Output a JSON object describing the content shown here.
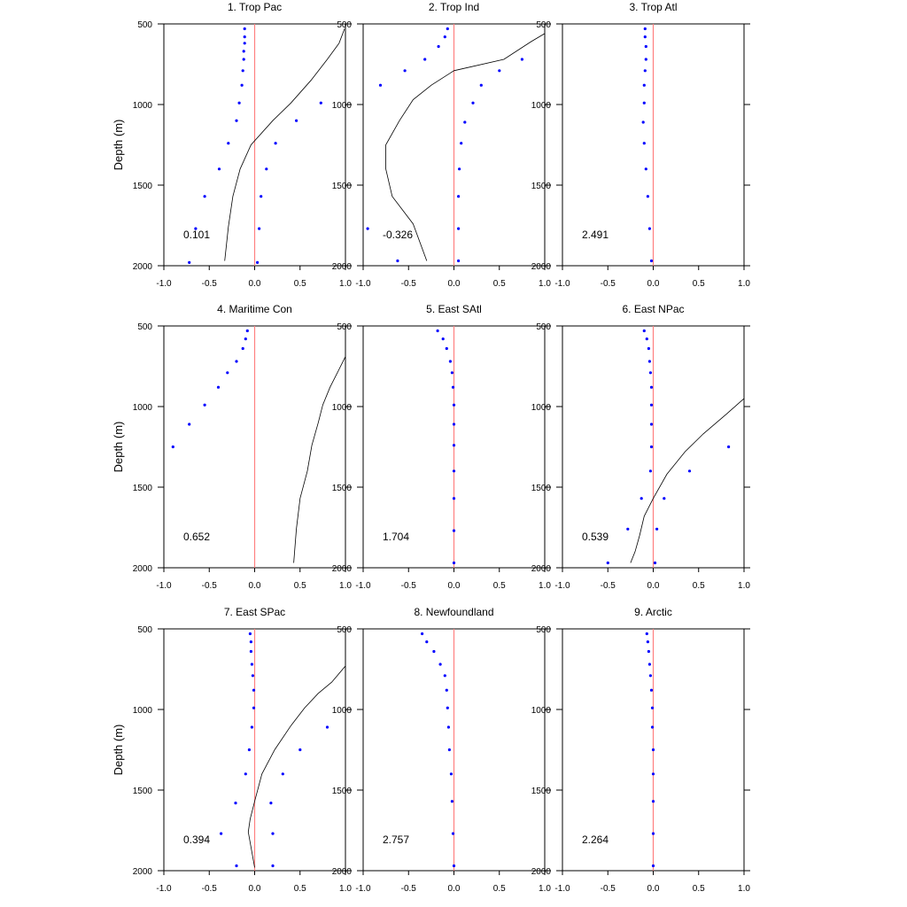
{
  "chart_data": {
    "type": "scatter",
    "ylabel": "Depth (m)",
    "x_ticks": [
      "-1.0",
      "-0.5",
      "0.0",
      "0.5",
      "1.0"
    ],
    "y_ticks": [
      "500",
      "1000",
      "1500",
      "2000"
    ],
    "xlim": [
      -1.0,
      1.0
    ],
    "ylim": [
      500,
      2000
    ],
    "y_inverted": true,
    "colors": {
      "dots": "#0000ff",
      "zero_line": "#ff8080",
      "curve": "#000000",
      "frame": "#000000"
    },
    "panels": [
      {
        "title": "1. Trop Pac",
        "stat": "0.101",
        "dots": [
          [
            -0.11,
            530
          ],
          [
            -0.11,
            580
          ],
          [
            -0.11,
            620
          ],
          [
            -0.12,
            670
          ],
          [
            -0.12,
            720
          ],
          [
            -0.13,
            790
          ],
          [
            -0.14,
            880
          ],
          [
            -0.17,
            990
          ],
          [
            -0.2,
            1100
          ],
          [
            -0.29,
            1240
          ],
          [
            -0.39,
            1400
          ],
          [
            -0.55,
            1570
          ],
          [
            -0.65,
            1770
          ],
          [
            -0.72,
            1980
          ],
          [
            0.73,
            990
          ],
          [
            0.46,
            1100
          ],
          [
            0.23,
            1240
          ],
          [
            0.13,
            1400
          ],
          [
            0.07,
            1570
          ],
          [
            0.05,
            1770
          ],
          [
            0.03,
            1980
          ]
        ],
        "curve": [
          [
            0.99,
            530
          ],
          [
            0.93,
            620
          ],
          [
            0.8,
            720
          ],
          [
            0.62,
            850
          ],
          [
            0.4,
            990
          ],
          [
            0.2,
            1100
          ],
          [
            -0.04,
            1250
          ],
          [
            -0.16,
            1400
          ],
          [
            -0.24,
            1570
          ],
          [
            -0.29,
            1760
          ],
          [
            -0.33,
            1970
          ]
        ]
      },
      {
        "title": "2. Trop Ind",
        "stat": "-0.326",
        "dots": [
          [
            -0.07,
            530
          ],
          [
            -0.1,
            580
          ],
          [
            -0.17,
            640
          ],
          [
            -0.32,
            720
          ],
          [
            -0.54,
            790
          ],
          [
            -0.81,
            880
          ],
          [
            -0.95,
            1770
          ],
          [
            -0.62,
            1970
          ],
          [
            0.75,
            720
          ],
          [
            0.5,
            790
          ],
          [
            0.3,
            880
          ],
          [
            0.21,
            990
          ],
          [
            0.12,
            1110
          ],
          [
            0.08,
            1240
          ],
          [
            0.06,
            1400
          ],
          [
            0.05,
            1570
          ],
          [
            0.05,
            1770
          ],
          [
            0.05,
            1970
          ]
        ],
        "curve": [
          [
            1.0,
            560
          ],
          [
            0.85,
            610
          ],
          [
            0.55,
            720
          ],
          [
            0.0,
            790
          ],
          [
            -0.25,
            880
          ],
          [
            -0.45,
            970
          ],
          [
            -0.6,
            1100
          ],
          [
            -0.75,
            1250
          ],
          [
            -0.75,
            1400
          ],
          [
            -0.68,
            1570
          ],
          [
            -0.45,
            1740
          ],
          [
            -0.3,
            1970
          ]
        ]
      },
      {
        "title": "3. Trop Atl",
        "stat": "2.491",
        "dots": [
          [
            -0.09,
            530
          ],
          [
            -0.09,
            580
          ],
          [
            -0.08,
            640
          ],
          [
            -0.08,
            720
          ],
          [
            -0.09,
            790
          ],
          [
            -0.1,
            880
          ],
          [
            -0.1,
            990
          ],
          [
            -0.11,
            1110
          ],
          [
            -0.1,
            1240
          ],
          [
            -0.08,
            1400
          ],
          [
            -0.06,
            1570
          ],
          [
            -0.04,
            1770
          ],
          [
            -0.02,
            1970
          ]
        ],
        "curve": []
      },
      {
        "title": "4. Maritime Con",
        "stat": "0.652",
        "dots": [
          [
            -0.08,
            530
          ],
          [
            -0.1,
            580
          ],
          [
            -0.13,
            640
          ],
          [
            -0.2,
            720
          ],
          [
            -0.3,
            790
          ],
          [
            -0.4,
            880
          ],
          [
            -0.55,
            990
          ],
          [
            -0.72,
            1110
          ],
          [
            -0.9,
            1250
          ]
        ],
        "curve": [
          [
            1.0,
            690
          ],
          [
            0.92,
            780
          ],
          [
            0.83,
            880
          ],
          [
            0.75,
            990
          ],
          [
            0.7,
            1100
          ],
          [
            0.63,
            1240
          ],
          [
            0.58,
            1400
          ],
          [
            0.5,
            1570
          ],
          [
            0.46,
            1760
          ],
          [
            0.43,
            1970
          ]
        ]
      },
      {
        "title": "5. East SAtl",
        "stat": "1.704",
        "dots": [
          [
            -0.18,
            530
          ],
          [
            -0.12,
            580
          ],
          [
            -0.08,
            640
          ],
          [
            -0.04,
            720
          ],
          [
            -0.02,
            790
          ],
          [
            -0.01,
            880
          ],
          [
            0.0,
            990
          ],
          [
            0.0,
            1110
          ],
          [
            0.0,
            1240
          ],
          [
            0.0,
            1400
          ],
          [
            0.0,
            1570
          ],
          [
            0.0,
            1770
          ],
          [
            0.0,
            1970
          ]
        ],
        "curve": []
      },
      {
        "title": "6. East NPac",
        "stat": "0.539",
        "dots": [
          [
            -0.1,
            530
          ],
          [
            -0.07,
            580
          ],
          [
            -0.05,
            640
          ],
          [
            -0.04,
            720
          ],
          [
            -0.03,
            790
          ],
          [
            -0.02,
            880
          ],
          [
            -0.02,
            990
          ],
          [
            -0.02,
            1110
          ],
          [
            -0.02,
            1250
          ],
          [
            -0.03,
            1400
          ],
          [
            -0.13,
            1570
          ],
          [
            -0.28,
            1760
          ],
          [
            -0.5,
            1970
          ],
          [
            0.83,
            1250
          ],
          [
            0.4,
            1400
          ],
          [
            0.12,
            1570
          ],
          [
            0.04,
            1760
          ],
          [
            0.02,
            1970
          ]
        ],
        "curve": [
          [
            1.0,
            950
          ],
          [
            0.8,
            1050
          ],
          [
            0.55,
            1170
          ],
          [
            0.35,
            1280
          ],
          [
            0.15,
            1420
          ],
          [
            0.0,
            1570
          ],
          [
            -0.1,
            1680
          ],
          [
            -0.15,
            1800
          ],
          [
            -0.2,
            1900
          ],
          [
            -0.25,
            1970
          ]
        ]
      },
      {
        "title": "7. East SPac",
        "stat": "0.394",
        "dots": [
          [
            -0.05,
            530
          ],
          [
            -0.04,
            580
          ],
          [
            -0.04,
            640
          ],
          [
            -0.03,
            720
          ],
          [
            -0.02,
            790
          ],
          [
            -0.01,
            880
          ],
          [
            -0.01,
            990
          ],
          [
            -0.03,
            1110
          ],
          [
            -0.06,
            1250
          ],
          [
            -0.1,
            1400
          ],
          [
            -0.21,
            1580
          ],
          [
            -0.37,
            1770
          ],
          [
            -0.2,
            1970
          ],
          [
            0.8,
            1110
          ],
          [
            0.5,
            1250
          ],
          [
            0.31,
            1400
          ],
          [
            0.18,
            1580
          ],
          [
            0.2,
            1770
          ],
          [
            0.2,
            1970
          ]
        ],
        "curve": [
          [
            1.0,
            730
          ],
          [
            0.85,
            830
          ],
          [
            0.7,
            900
          ],
          [
            0.55,
            990
          ],
          [
            0.4,
            1100
          ],
          [
            0.22,
            1250
          ],
          [
            0.08,
            1400
          ],
          [
            0.0,
            1570
          ],
          [
            -0.05,
            1680
          ],
          [
            -0.07,
            1760
          ],
          [
            0.0,
            1980
          ]
        ]
      },
      {
        "title": "8. Newfoundland",
        "stat": "2.757",
        "dots": [
          [
            -0.35,
            530
          ],
          [
            -0.3,
            580
          ],
          [
            -0.22,
            640
          ],
          [
            -0.15,
            720
          ],
          [
            -0.1,
            790
          ],
          [
            -0.08,
            880
          ],
          [
            -0.07,
            990
          ],
          [
            -0.06,
            1110
          ],
          [
            -0.05,
            1250
          ],
          [
            -0.03,
            1400
          ],
          [
            -0.02,
            1570
          ],
          [
            -0.01,
            1770
          ],
          [
            0.0,
            1970
          ]
        ],
        "curve": []
      },
      {
        "title": "9. Arctic",
        "stat": "2.264",
        "dots": [
          [
            -0.07,
            530
          ],
          [
            -0.06,
            580
          ],
          [
            -0.05,
            640
          ],
          [
            -0.04,
            720
          ],
          [
            -0.03,
            790
          ],
          [
            -0.02,
            880
          ],
          [
            -0.01,
            990
          ],
          [
            -0.01,
            1110
          ],
          [
            0.0,
            1250
          ],
          [
            0.0,
            1400
          ],
          [
            0.0,
            1570
          ],
          [
            0.0,
            1770
          ],
          [
            0.0,
            1970
          ]
        ],
        "curve": []
      }
    ]
  }
}
